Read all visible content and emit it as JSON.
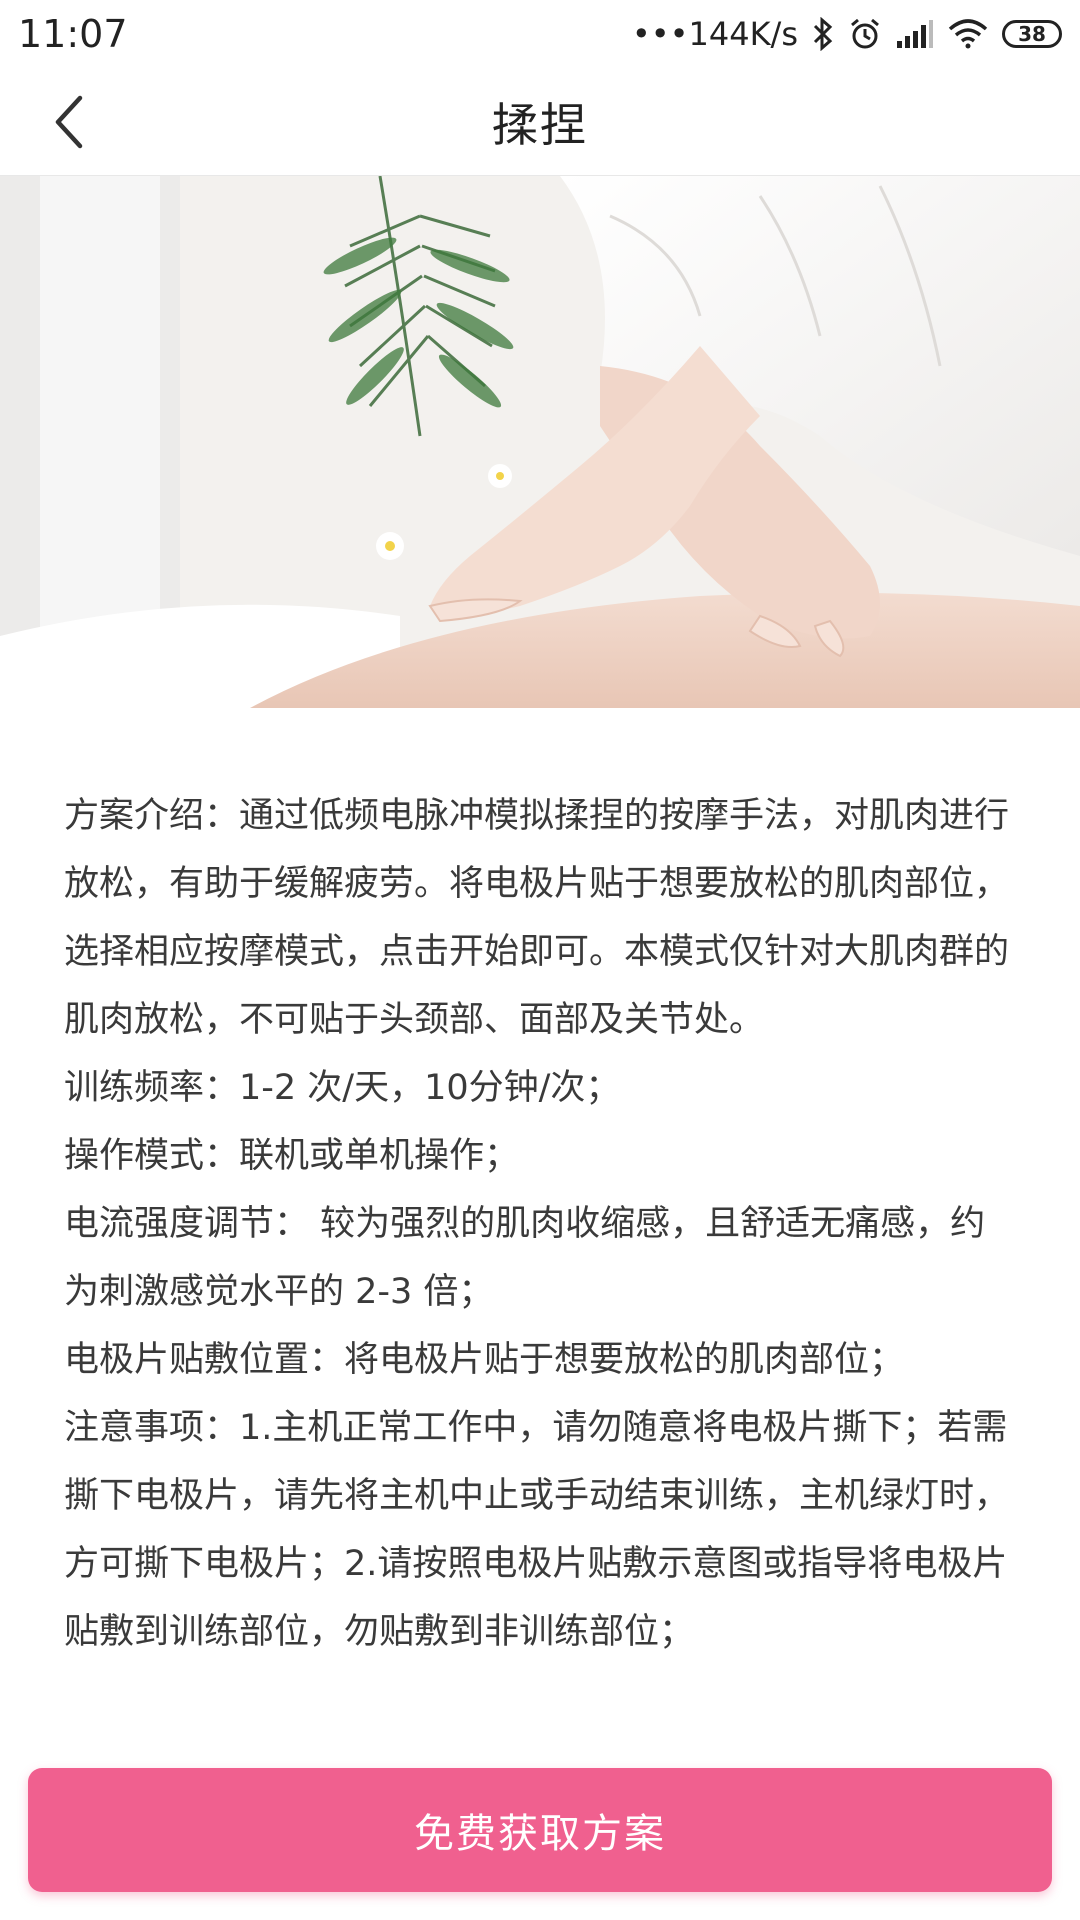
{
  "status_bar": {
    "time": "11:07",
    "network_speed": "•••144K/s",
    "battery_level": "38",
    "icons": [
      "bluetooth-icon",
      "alarm-icon",
      "signal-icon",
      "wifi-icon",
      "battery-icon"
    ]
  },
  "nav": {
    "title": "揉捏",
    "back_icon": "chevron-left-icon"
  },
  "hero": {
    "image_description_icon": "massage-photo"
  },
  "content": {
    "paragraphs": [
      "方案介绍：通过低频电脉冲模拟揉捏的按摩手法，对肌肉进行放松，有助于缓解疲劳。将电极片贴于想要放松的肌肉部位，选择相应按摩模式，点击开始即可。本模式仅针对大肌肉群的肌肉放松，不可贴于头颈部、面部及关节处。",
      "训练频率：1-2 次/天，10分钟/次；",
      "操作模式：联机或单机操作；",
      "电流强度调节： 较为强烈的肌肉收缩感，且舒适无痛感，约为刺激感觉水平的 2-3 倍；",
      "电极片贴敷位置：将电极片贴于想要放松的肌肉部位；",
      "注意事项：1.主机正常工作中，请勿随意将电极片撕下；若需撕下电极片，请先将主机中止或手动结束训练，主机绿灯时，方可撕下电极片；2.请按照电极片贴敷示意图或指导将电极片贴敷到训练部位，勿贴敷到非训练部位；"
    ]
  },
  "cta": {
    "label": "免费获取方案"
  },
  "colors": {
    "accent": "#f0608f",
    "text": "#3a3a3a"
  }
}
